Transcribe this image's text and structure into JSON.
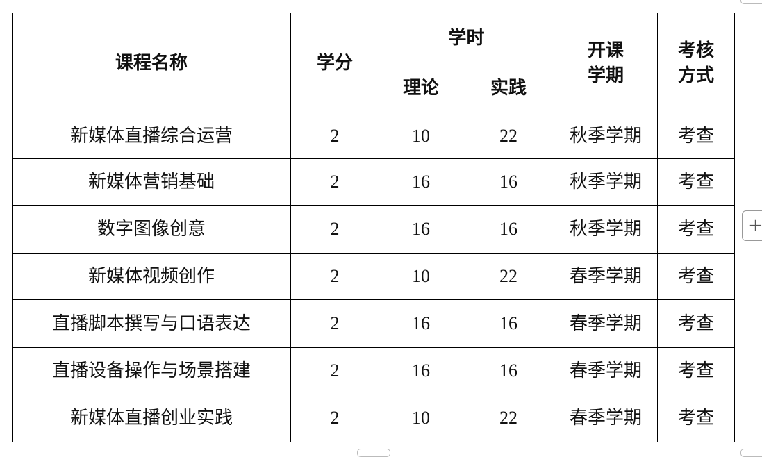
{
  "headers": {
    "course_name": "课程名称",
    "credits": "学分",
    "hours": "学时",
    "theory": "理论",
    "practice": "实践",
    "semester": [
      "开课",
      "学期"
    ],
    "assessment": [
      "考核",
      "方式"
    ]
  },
  "rows": [
    {
      "name": "新媒体直播综合运营",
      "credits": "2",
      "theory": "10",
      "practice": "22",
      "semester": "秋季学期",
      "assessment": "考查"
    },
    {
      "name": "新媒体营销基础",
      "credits": "2",
      "theory": "16",
      "practice": "16",
      "semester": "秋季学期",
      "assessment": "考查"
    },
    {
      "name": "数字图像创意",
      "credits": "2",
      "theory": "16",
      "practice": "16",
      "semester": "秋季学期",
      "assessment": "考查"
    },
    {
      "name": "新媒体视频创作",
      "credits": "2",
      "theory": "10",
      "practice": "22",
      "semester": "春季学期",
      "assessment": "考查"
    },
    {
      "name": "直播脚本撰写与口语表达",
      "credits": "2",
      "theory": "16",
      "practice": "16",
      "semester": "春季学期",
      "assessment": "考查"
    },
    {
      "name": "直播设备操作与场景搭建",
      "credits": "2",
      "theory": "16",
      "practice": "16",
      "semester": "春季学期",
      "assessment": "考查"
    },
    {
      "name": "新媒体直播创业实践",
      "credits": "2",
      "theory": "10",
      "practice": "22",
      "semester": "春季学期",
      "assessment": "考查"
    }
  ],
  "controls": {
    "add_icon": "plus-icon"
  }
}
